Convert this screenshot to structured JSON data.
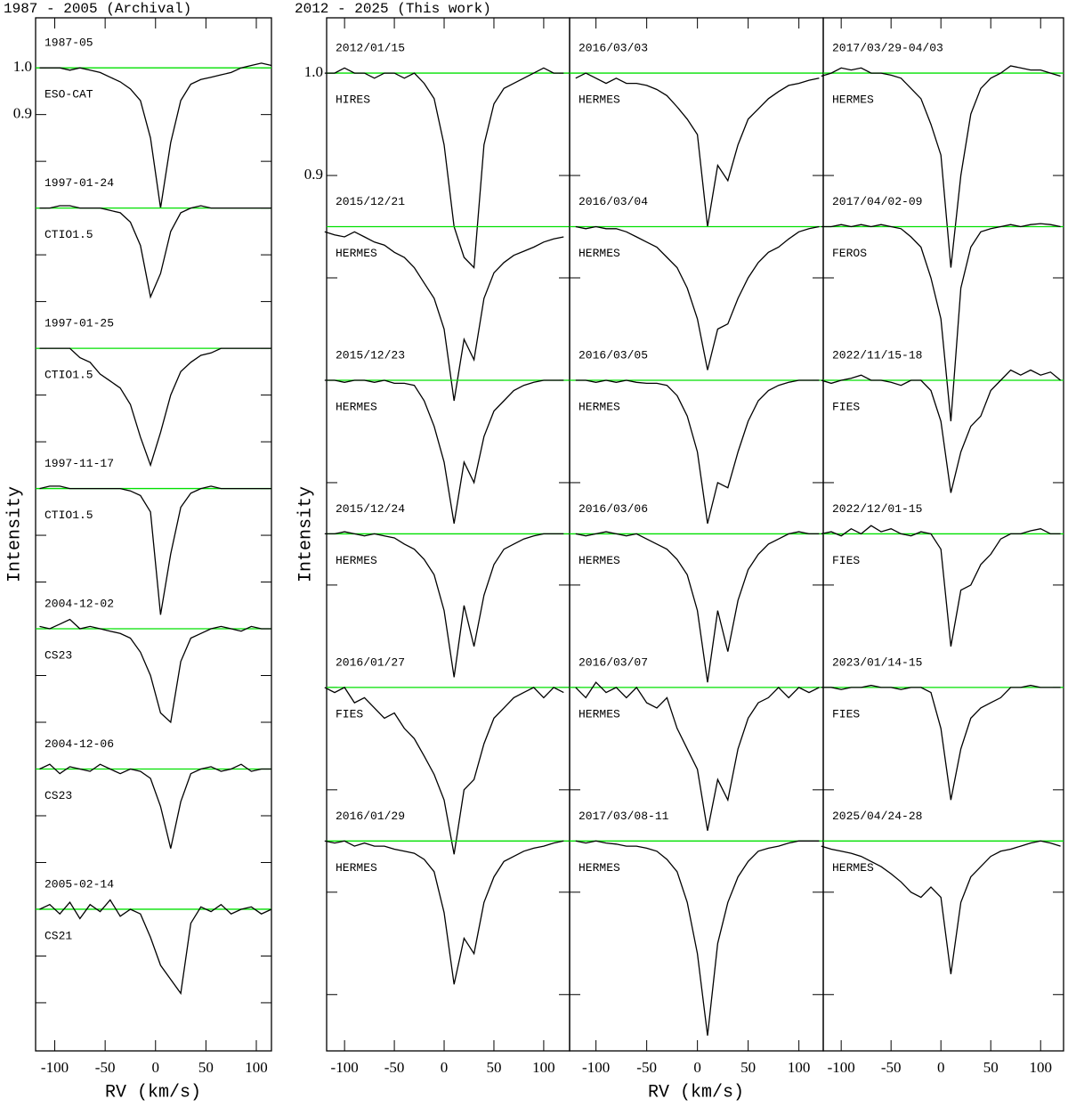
{
  "chart_data": [
    {
      "type": "line",
      "title": "1987 - 2005 (Archival)",
      "ylabel": "Intensity",
      "xlabel": "RV (km/s)",
      "xlim": [
        -119,
        115
      ],
      "ylim": [
        -1.103,
        1.107
      ],
      "xticks": [
        -100,
        -50,
        0,
        50,
        100
      ],
      "yticks": [
        {
          "value": 1,
          "label": "1.0"
        },
        0.9
      ],
      "yminor": [
        0.8,
        0.7,
        0.6,
        0.5,
        0.4,
        0.3,
        0.2,
        0.1,
        0,
        -0.1,
        -0.2,
        -0.3,
        -0.4,
        -0.5,
        -0.6,
        -0.7,
        -0.8,
        -0.9,
        -1.0
      ],
      "line_color": "#000000",
      "continuum_color": "#00e000",
      "x": [
        -115,
        -105,
        -95,
        -85,
        -75,
        -65,
        -55,
        -45,
        -35,
        -25,
        -15,
        -5,
        5,
        15,
        25,
        35,
        45,
        55,
        65,
        75,
        85,
        95,
        105,
        115
      ],
      "series": [
        {
          "name": "1987-05",
          "instrument": "ESO-CAT",
          "color": "#0000ff",
          "continuum": 1.0,
          "values": [
            1.0,
            1.0,
            1.0,
            0.995,
            1.0,
            0.995,
            0.99,
            0.98,
            0.97,
            0.955,
            0.93,
            0.85,
            0.7,
            0.84,
            0.93,
            0.965,
            0.975,
            0.98,
            0.985,
            0.99,
            1.0,
            1.005,
            1.01,
            1.005
          ]
        },
        {
          "name": "1997-01-24",
          "instrument": "CTIO1.5",
          "color": "#ff0000",
          "continuum": 0.7,
          "values": [
            0.7,
            0.7,
            0.705,
            0.705,
            0.7,
            0.7,
            0.7,
            0.695,
            0.69,
            0.67,
            0.62,
            0.51,
            0.56,
            0.65,
            0.69,
            0.7,
            0.705,
            0.7,
            0.7,
            0.7,
            0.7,
            0.7,
            0.7,
            0.7
          ]
        },
        {
          "name": "1997-01-25",
          "instrument": "CTIO1.5",
          "color": "#ff0000",
          "continuum": 0.4,
          "values": [
            0.4,
            0.4,
            0.4,
            0.4,
            0.38,
            0.37,
            0.345,
            0.33,
            0.315,
            0.28,
            0.21,
            0.15,
            0.22,
            0.3,
            0.35,
            0.37,
            0.385,
            0.39,
            0.4,
            0.4,
            0.4,
            0.4,
            0.4,
            0.4
          ]
        },
        {
          "name": "1997-11-17",
          "instrument": "CTIO1.5",
          "color": "#0000ff",
          "continuum": 0.1,
          "values": [
            0.1,
            0.105,
            0.105,
            0.1,
            0.1,
            0.1,
            0.1,
            0.1,
            0.1,
            0.095,
            0.085,
            0.05,
            -0.17,
            -0.04,
            0.06,
            0.09,
            0.1,
            0.105,
            0.1,
            0.1,
            0.1,
            0.1,
            0.1,
            0.1
          ]
        },
        {
          "name": "2004-12-02",
          "instrument": "CS23",
          "color": "#ff0000",
          "continuum": -0.2,
          "values": [
            -0.195,
            -0.2,
            -0.19,
            -0.18,
            -0.2,
            -0.195,
            -0.2,
            -0.205,
            -0.21,
            -0.22,
            -0.25,
            -0.3,
            -0.38,
            -0.4,
            -0.27,
            -0.22,
            -0.21,
            -0.2,
            -0.195,
            -0.2,
            -0.205,
            -0.195,
            -0.2,
            -0.2
          ]
        },
        {
          "name": "2004-12-06",
          "instrument": "CS23",
          "color": "#ff0000",
          "continuum": -0.5,
          "values": [
            -0.5,
            -0.49,
            -0.51,
            -0.495,
            -0.5,
            -0.505,
            -0.49,
            -0.5,
            -0.51,
            -0.5,
            -0.505,
            -0.52,
            -0.58,
            -0.67,
            -0.57,
            -0.51,
            -0.5,
            -0.495,
            -0.505,
            -0.5,
            -0.49,
            -0.505,
            -0.5,
            -0.5
          ]
        },
        {
          "name": "2005-02-14",
          "instrument": "CS21",
          "color": "#0000ff",
          "continuum": -0.8,
          "values": [
            -0.8,
            -0.79,
            -0.81,
            -0.785,
            -0.82,
            -0.79,
            -0.805,
            -0.78,
            -0.815,
            -0.8,
            -0.81,
            -0.86,
            -0.92,
            -0.95,
            -0.98,
            -0.83,
            -0.795,
            -0.805,
            -0.79,
            -0.81,
            -0.8,
            -0.795,
            -0.81,
            -0.8
          ]
        }
      ]
    },
    {
      "type": "line",
      "title": "2012 - 2025 (This work)",
      "ylabel": "Intensity",
      "xlim": [
        -118,
        126
      ],
      "ylim": [
        0.045,
        1.054
      ],
      "xticks": [
        -100,
        -50,
        0,
        50,
        100
      ],
      "yticks": [
        {
          "value": 1,
          "label": "1.0"
        },
        0.9
      ],
      "yminor": [
        0.8,
        0.7,
        0.6,
        0.5,
        0.4,
        0.3,
        0.2,
        0.1
      ],
      "line_color": "#000000",
      "continuum_color": "#00e000",
      "x": [
        -120,
        -110,
        -100,
        -90,
        -80,
        -70,
        -60,
        -50,
        -40,
        -30,
        -20,
        -10,
        0,
        10,
        20,
        30,
        40,
        50,
        60,
        70,
        80,
        90,
        100,
        110,
        120
      ],
      "series": [
        {
          "name": "2012/01/15",
          "instrument": "HIRES",
          "color": "#ff0000",
          "continuum": 1.0,
          "values": [
            1.0,
            1.0,
            1.005,
            1.0,
            1.0,
            0.995,
            1.0,
            1.0,
            0.995,
            1.0,
            0.99,
            0.975,
            0.93,
            0.85,
            0.82,
            0.81,
            0.93,
            0.97,
            0.985,
            0.99,
            0.995,
            1.0,
            1.005,
            1.0,
            1.0
          ]
        },
        {
          "name": "2015/12/21",
          "instrument": "HERMES",
          "color": "#0000ff",
          "continuum": 0.85,
          "values": [
            0.845,
            0.842,
            0.84,
            0.845,
            0.84,
            0.835,
            0.832,
            0.825,
            0.82,
            0.81,
            0.795,
            0.78,
            0.75,
            0.68,
            0.74,
            0.72,
            0.78,
            0.805,
            0.815,
            0.822,
            0.826,
            0.83,
            0.835,
            0.838,
            0.84
          ]
        },
        {
          "name": "2015/12/23",
          "instrument": "HERMES",
          "color": "#0000ff",
          "continuum": 0.7,
          "values": [
            0.7,
            0.7,
            0.698,
            0.7,
            0.7,
            0.698,
            0.7,
            0.697,
            0.697,
            0.695,
            0.68,
            0.655,
            0.62,
            0.56,
            0.62,
            0.6,
            0.645,
            0.67,
            0.68,
            0.69,
            0.695,
            0.698,
            0.7,
            0.7,
            0.7
          ]
        },
        {
          "name": "2015/12/24",
          "instrument": "HERMES",
          "color": "#0000ff",
          "continuum": 0.55,
          "values": [
            0.55,
            0.55,
            0.552,
            0.55,
            0.548,
            0.55,
            0.548,
            0.546,
            0.54,
            0.535,
            0.525,
            0.51,
            0.475,
            0.41,
            0.48,
            0.44,
            0.49,
            0.52,
            0.535,
            0.54,
            0.545,
            0.548,
            0.55,
            0.55,
            0.55
          ]
        },
        {
          "name": "2016/01/27",
          "instrument": "FIES",
          "color": "#ff0000",
          "continuum": 0.4,
          "values": [
            0.4,
            0.395,
            0.4,
            0.385,
            0.39,
            0.38,
            0.37,
            0.375,
            0.36,
            0.35,
            0.333,
            0.315,
            0.29,
            0.237,
            0.3,
            0.31,
            0.345,
            0.37,
            0.38,
            0.39,
            0.395,
            0.4,
            0.39,
            0.4,
            0.395
          ]
        },
        {
          "name": "2016/01/29",
          "instrument": "HERMES",
          "color": "#ff0000",
          "continuum": 0.25,
          "values": [
            0.25,
            0.248,
            0.25,
            0.245,
            0.248,
            0.245,
            0.245,
            0.242,
            0.24,
            0.238,
            0.232,
            0.22,
            0.18,
            0.11,
            0.155,
            0.14,
            0.19,
            0.215,
            0.23,
            0.235,
            0.24,
            0.243,
            0.245,
            0.248,
            0.25
          ]
        }
      ]
    },
    {
      "type": "line",
      "xlabel": "RV (km/s)",
      "xlim": [
        -126,
        124
      ],
      "ylim": [
        0.045,
        1.054
      ],
      "xticks": [
        -100,
        -50,
        0,
        50,
        100
      ],
      "yminor": [
        1.0,
        0.9,
        0.8,
        0.7,
        0.6,
        0.5,
        0.4,
        0.3,
        0.2,
        0.1
      ],
      "line_color": "#000000",
      "continuum_color": "#00e000",
      "x": [
        -120,
        -110,
        -100,
        -90,
        -80,
        -70,
        -60,
        -50,
        -40,
        -30,
        -20,
        -10,
        0,
        10,
        20,
        30,
        40,
        50,
        60,
        70,
        80,
        90,
        100,
        110,
        120
      ],
      "series": [
        {
          "name": "2016/03/03",
          "instrument": "HERMES",
          "color": "#0000ff",
          "continuum": 1.0,
          "values": [
            0.995,
            1.0,
            0.995,
            0.99,
            0.995,
            0.99,
            0.99,
            0.988,
            0.984,
            0.978,
            0.967,
            0.955,
            0.94,
            0.85,
            0.91,
            0.895,
            0.93,
            0.955,
            0.965,
            0.975,
            0.982,
            0.988,
            0.99,
            0.993,
            0.995
          ]
        },
        {
          "name": "2016/03/04",
          "instrument": "HERMES",
          "color": "#0000ff",
          "continuum": 0.85,
          "values": [
            0.85,
            0.848,
            0.85,
            0.848,
            0.848,
            0.845,
            0.84,
            0.835,
            0.83,
            0.82,
            0.81,
            0.79,
            0.76,
            0.71,
            0.75,
            0.755,
            0.78,
            0.8,
            0.815,
            0.825,
            0.83,
            0.838,
            0.845,
            0.848,
            0.85
          ]
        },
        {
          "name": "2016/03/05",
          "instrument": "HERMES",
          "color": "#0000ff",
          "continuum": 0.7,
          "values": [
            0.7,
            0.7,
            0.698,
            0.7,
            0.698,
            0.7,
            0.698,
            0.697,
            0.697,
            0.695,
            0.685,
            0.665,
            0.63,
            0.56,
            0.6,
            0.595,
            0.63,
            0.66,
            0.68,
            0.69,
            0.695,
            0.698,
            0.7,
            0.7,
            0.7
          ]
        },
        {
          "name": "2016/03/06",
          "instrument": "HERMES",
          "color": "#0000ff",
          "continuum": 0.55,
          "values": [
            0.55,
            0.548,
            0.55,
            0.552,
            0.55,
            0.548,
            0.55,
            0.545,
            0.54,
            0.535,
            0.525,
            0.51,
            0.475,
            0.405,
            0.475,
            0.435,
            0.485,
            0.515,
            0.53,
            0.54,
            0.545,
            0.55,
            0.552,
            0.55,
            0.55
          ]
        },
        {
          "name": "2016/03/07",
          "instrument": "HERMES",
          "color": "#0000ff",
          "continuum": 0.4,
          "values": [
            0.4,
            0.39,
            0.405,
            0.395,
            0.4,
            0.39,
            0.4,
            0.385,
            0.38,
            0.39,
            0.36,
            0.34,
            0.32,
            0.26,
            0.31,
            0.29,
            0.34,
            0.37,
            0.385,
            0.39,
            0.4,
            0.39,
            0.4,
            0.395,
            0.4
          ]
        },
        {
          "name": "2017/03/08-11",
          "instrument": "HERMES",
          "color": "#ff0000",
          "continuum": 0.25,
          "values": [
            0.25,
            0.248,
            0.25,
            0.248,
            0.247,
            0.245,
            0.245,
            0.243,
            0.24,
            0.232,
            0.22,
            0.19,
            0.14,
            0.06,
            0.15,
            0.19,
            0.215,
            0.23,
            0.24,
            0.243,
            0.245,
            0.248,
            0.25,
            0.25,
            0.25
          ]
        }
      ]
    },
    {
      "type": "line",
      "xlim": [
        -118,
        123
      ],
      "ylim": [
        0.045,
        1.054
      ],
      "xticks": [
        -100,
        -50,
        0,
        50,
        100
      ],
      "yminor": [
        1.0,
        0.9,
        0.8,
        0.7,
        0.6,
        0.5,
        0.4,
        0.3,
        0.2,
        0.1
      ],
      "line_color": "#000000",
      "continuum_color": "#00e000",
      "x": [
        -120,
        -110,
        -100,
        -90,
        -80,
        -70,
        -60,
        -50,
        -40,
        -30,
        -20,
        -10,
        0,
        10,
        20,
        30,
        40,
        50,
        60,
        70,
        80,
        90,
        100,
        110,
        120
      ],
      "series": [
        {
          "name": "2017/03/29-04/03",
          "instrument": "HERMES",
          "color": "#ff0000",
          "continuum": 1.0,
          "values": [
            0.997,
            1.0,
            1.005,
            1.003,
            1.005,
            1.0,
            1.0,
            0.998,
            0.995,
            0.985,
            0.975,
            0.95,
            0.92,
            0.81,
            0.9,
            0.96,
            0.985,
            0.995,
            1.0,
            1.007,
            1.005,
            1.003,
            1.003,
            1.0,
            0.997
          ]
        },
        {
          "name": "2017/04/02-09",
          "instrument": "FEROS",
          "color": "#ff0000",
          "continuum": 0.85,
          "values": [
            0.85,
            0.85,
            0.852,
            0.85,
            0.852,
            0.85,
            0.852,
            0.85,
            0.848,
            0.84,
            0.83,
            0.8,
            0.76,
            0.66,
            0.79,
            0.83,
            0.845,
            0.848,
            0.85,
            0.852,
            0.85,
            0.852,
            0.853,
            0.852,
            0.85
          ]
        },
        {
          "name": "2022/11/15-18",
          "instrument": "FIES",
          "color": "#0000ff",
          "continuum": 0.7,
          "values": [
            0.7,
            0.697,
            0.7,
            0.702,
            0.705,
            0.7,
            0.7,
            0.698,
            0.695,
            0.7,
            0.7,
            0.69,
            0.66,
            0.59,
            0.63,
            0.655,
            0.665,
            0.69,
            0.7,
            0.71,
            0.705,
            0.71,
            0.705,
            0.708,
            0.7
          ]
        },
        {
          "name": "2022/12/01-15",
          "instrument": "FIES",
          "color": "#0000ff",
          "continuum": 0.55,
          "values": [
            0.55,
            0.552,
            0.548,
            0.555,
            0.55,
            0.558,
            0.552,
            0.555,
            0.55,
            0.548,
            0.552,
            0.55,
            0.535,
            0.44,
            0.495,
            0.5,
            0.52,
            0.53,
            0.545,
            0.55,
            0.55,
            0.553,
            0.555,
            0.55,
            0.55
          ]
        },
        {
          "name": "2023/01/14-15",
          "instrument": "FIES",
          "color": "#0000ff",
          "continuum": 0.4,
          "values": [
            0.4,
            0.4,
            0.398,
            0.4,
            0.4,
            0.402,
            0.4,
            0.4,
            0.398,
            0.4,
            0.4,
            0.395,
            0.36,
            0.29,
            0.34,
            0.37,
            0.38,
            0.385,
            0.39,
            0.4,
            0.4,
            0.402,
            0.4,
            0.4,
            0.4
          ]
        },
        {
          "name": "2025/04/24-28",
          "instrument": "HERMES",
          "color": "#ff0000",
          "continuum": 0.25,
          "values": [
            0.245,
            0.242,
            0.24,
            0.238,
            0.235,
            0.23,
            0.225,
            0.218,
            0.21,
            0.2,
            0.195,
            0.205,
            0.195,
            0.12,
            0.19,
            0.215,
            0.225,
            0.235,
            0.24,
            0.242,
            0.245,
            0.248,
            0.25,
            0.248,
            0.245
          ]
        }
      ]
    }
  ]
}
